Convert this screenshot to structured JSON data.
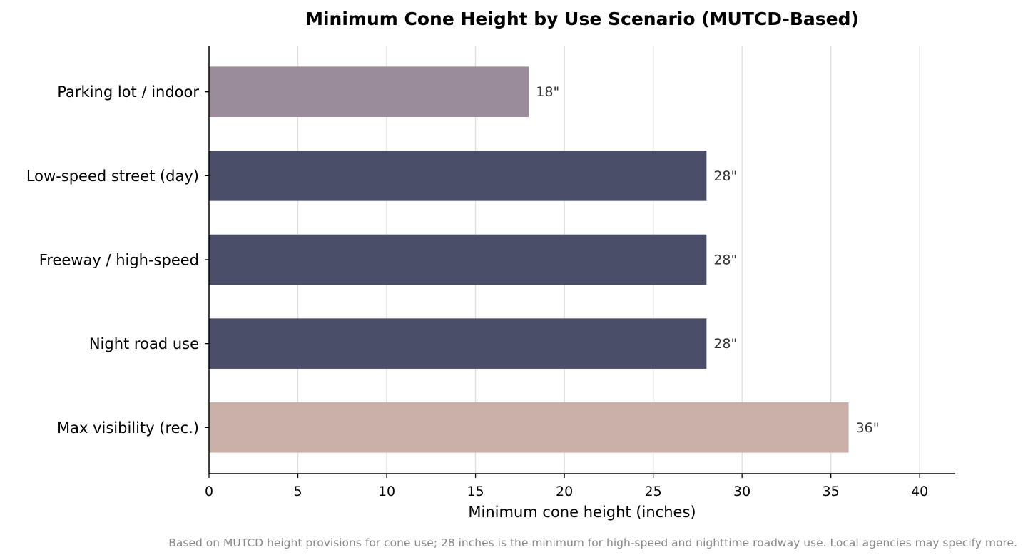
{
  "chart_data": {
    "type": "bar",
    "orientation": "horizontal",
    "title": "Minimum Cone Height by Use Scenario (MUTCD-Based)",
    "xlabel": "Minimum cone height (inches)",
    "ylabel": "",
    "xlim": [
      0,
      42
    ],
    "xticks": [
      0,
      5,
      10,
      15,
      20,
      25,
      30,
      35,
      40
    ],
    "grid": "vertical",
    "categories": [
      "Parking lot / indoor",
      "Low-speed street (day)",
      "Freeway / high-speed",
      "Night road use",
      "Max visibility (rec.)"
    ],
    "values": [
      18,
      28,
      28,
      28,
      36
    ],
    "value_labels": [
      "18\"",
      "28\"",
      "28\"",
      "28\"",
      "36\""
    ],
    "colors": [
      "#9b8c9a",
      "#4a4e69",
      "#4a4e69",
      "#4a4e69",
      "#c9b0a8"
    ],
    "footnote": "Based on MUTCD height provisions for cone use; 28 inches is the minimum for high-speed and nighttime roadway use. Local agencies may specify more."
  }
}
